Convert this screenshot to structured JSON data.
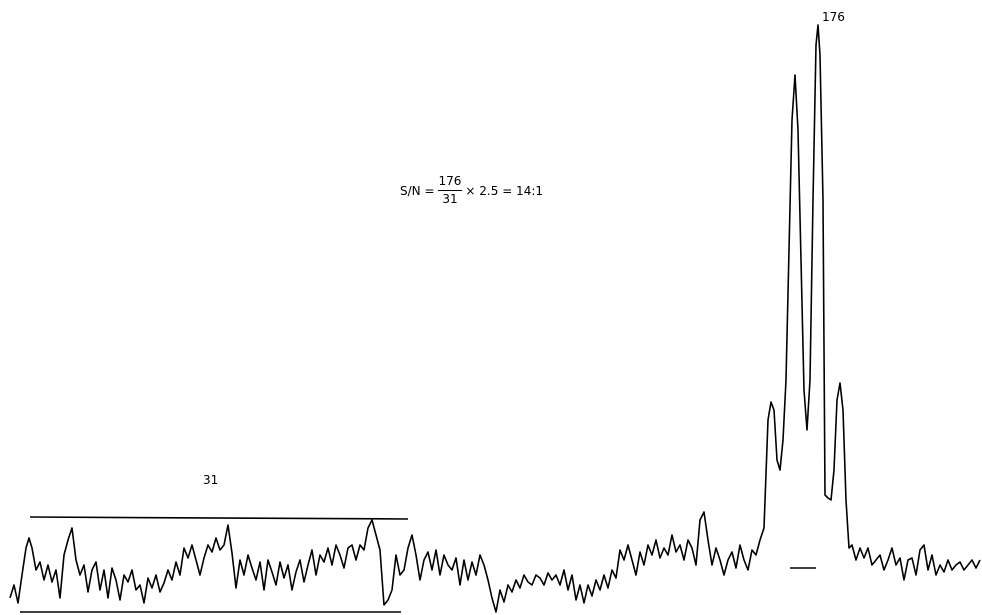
{
  "labels": {
    "peak_height": "176",
    "noise_height": "31"
  },
  "formula": {
    "lhs": "S/N =",
    "numerator": "176",
    "denominator": "31",
    "rhs": "× 2.5 = 14:1"
  },
  "colors": {
    "trace": "#000000",
    "background": "#ffffff"
  }
}
